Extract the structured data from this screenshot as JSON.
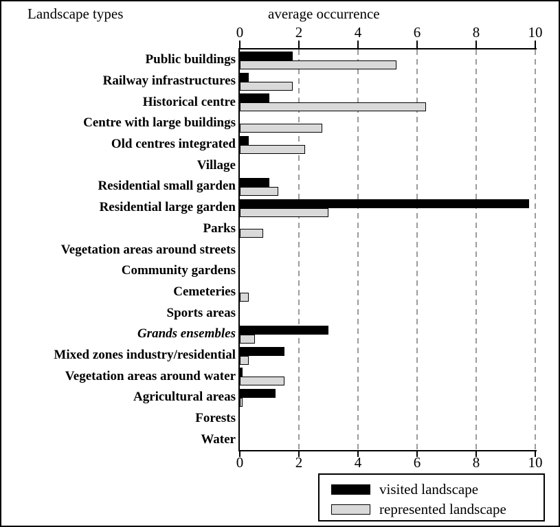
{
  "chart": {
    "left_title": "Landscape types",
    "top_title": "average occurrence"
  },
  "chart_data": {
    "type": "bar",
    "orientation": "horizontal",
    "title": "",
    "xlabel": "average occurrence",
    "ylabel": "Landscape types",
    "xlim": [
      0,
      10
    ],
    "xticks": [
      0,
      2,
      4,
      6,
      8,
      10
    ],
    "grid": "vertical dashed gridlines at ticks 2,4,6,8,10",
    "legend_position": "bottom-right",
    "categories": [
      "Public buildings",
      "Railway infrastructures",
      "Historical centre",
      "Centre with large buildings",
      "Old centres integrated",
      "Village",
      "Residential small garden",
      "Residential large garden",
      "Parks",
      "Vegetation areas around streets",
      "Community gardens",
      "Cemeteries",
      "Sports areas",
      "Grands ensembles",
      "Mixed zones industry/residential",
      "Vegetation areas around water",
      "Agricultural areas",
      "Forests",
      "Water"
    ],
    "italic_categories": [
      "Grands ensembles"
    ],
    "series": [
      {
        "name": "visited landscape",
        "color": "#000000",
        "values": [
          1.8,
          0.3,
          1.0,
          0,
          0.3,
          0,
          1.0,
          9.8,
          0,
          0,
          0,
          0,
          0,
          3.0,
          1.5,
          0.1,
          1.2,
          0,
          0
        ]
      },
      {
        "name": "represented landscape",
        "color": "#d9d9d9",
        "values": [
          5.3,
          1.8,
          6.3,
          2.8,
          2.2,
          0,
          1.3,
          3.0,
          0.8,
          0,
          0,
          0.3,
          0,
          0.5,
          0.3,
          1.5,
          0.1,
          0,
          0
        ]
      }
    ]
  },
  "colors": {
    "axis": "#000000",
    "gridline": "#9b9b9b",
    "background": "#ffffff"
  }
}
